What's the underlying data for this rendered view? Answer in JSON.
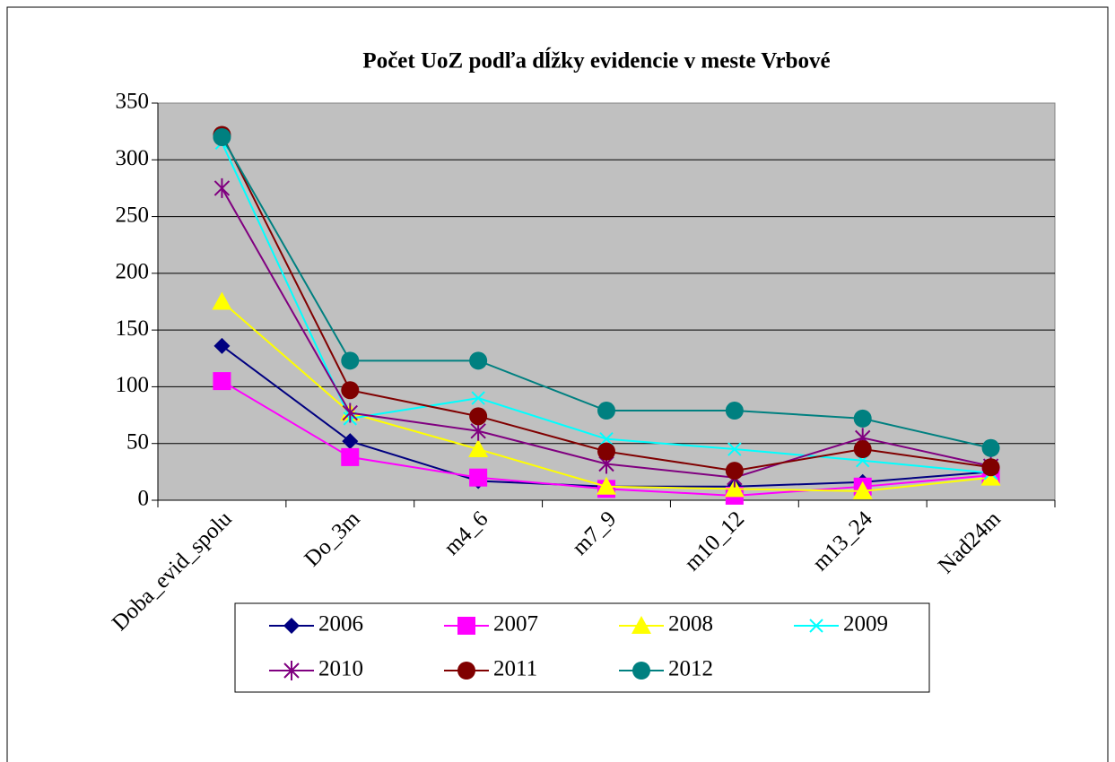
{
  "chart_data": {
    "type": "line",
    "title": "Počet UoZ podľa dĺžky evidencie v meste Vrbové",
    "categories": [
      "Doba_evid_spolu",
      "Do_3m",
      "m4_6",
      "m7_9",
      "m10_12",
      "m13_24",
      "Nad24m"
    ],
    "series": [
      {
        "name": "2006",
        "color": "#000080",
        "marker": "diamond",
        "values": [
          136,
          52,
          17,
          12,
          12,
          16,
          25
        ]
      },
      {
        "name": "2007",
        "color": "#ff00ff",
        "marker": "square",
        "values": [
          105,
          38,
          20,
          10,
          4,
          12,
          22
        ]
      },
      {
        "name": "2008",
        "color": "#ffff00",
        "marker": "triangle",
        "values": [
          175,
          77,
          45,
          12,
          10,
          8,
          20
        ]
      },
      {
        "name": "2009",
        "color": "#00ffff",
        "marker": "x",
        "values": [
          315,
          72,
          90,
          54,
          45,
          35,
          24
        ]
      },
      {
        "name": "2010",
        "color": "#800080",
        "marker": "star",
        "values": [
          275,
          77,
          61,
          32,
          20,
          55,
          30
        ]
      },
      {
        "name": "2011",
        "color": "#800000",
        "marker": "circle",
        "values": [
          322,
          97,
          74,
          43,
          26,
          45,
          29
        ]
      },
      {
        "name": "2012",
        "color": "#008080",
        "marker": "circle",
        "values": [
          320,
          123,
          123,
          79,
          79,
          72,
          46
        ]
      }
    ],
    "ylim": [
      0,
      350
    ],
    "yticks": [
      0,
      50,
      100,
      150,
      200,
      250,
      300,
      350
    ],
    "grid": true,
    "legend": "bottom"
  }
}
